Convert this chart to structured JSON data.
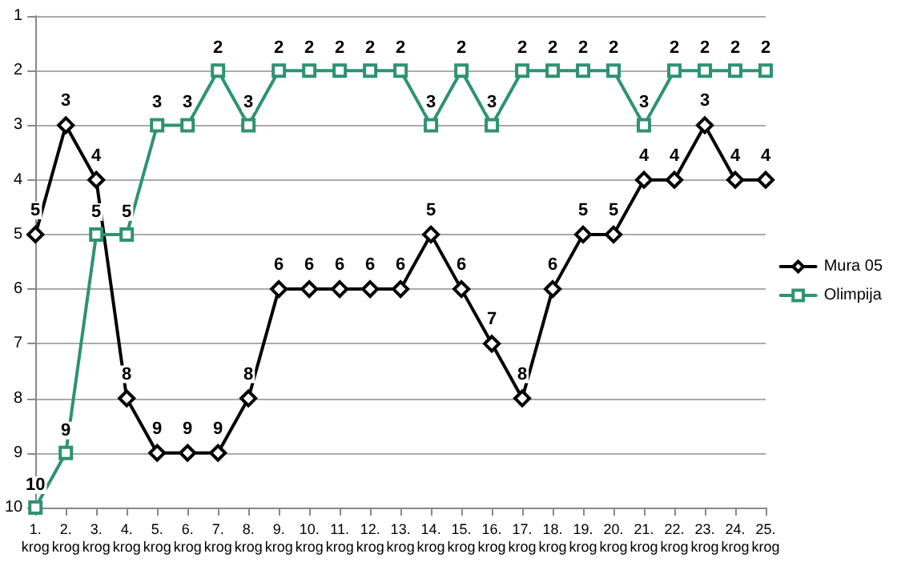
{
  "chart_data": {
    "type": "line",
    "categories": [
      "1. krog",
      "2. krog",
      "3. krog",
      "4. krog",
      "5. krog",
      "6. krog",
      "7. krog",
      "8. krog",
      "9. krog",
      "10. krog",
      "11. krog",
      "12. krog",
      "13. krog",
      "14. krog",
      "15. krog",
      "16. krog",
      "17. krog",
      "18. krog",
      "19. krog",
      "20. krog",
      "21. krog",
      "22. krog",
      "23. krog",
      "24. krog",
      "25. krog"
    ],
    "series": [
      {
        "name": "Mura 05",
        "color": "#000000",
        "marker": "diamond",
        "values": [
          5,
          3,
          4,
          8,
          9,
          9,
          9,
          8,
          6,
          6,
          6,
          6,
          6,
          5,
          6,
          7,
          8,
          6,
          5,
          5,
          4,
          4,
          3,
          4,
          4
        ]
      },
      {
        "name": "Olimpija",
        "color": "#2e9272",
        "marker": "square",
        "values": [
          10,
          9,
          5,
          5,
          3,
          3,
          2,
          3,
          2,
          2,
          2,
          2,
          2,
          3,
          2,
          3,
          2,
          2,
          2,
          2,
          3,
          2,
          2,
          2,
          2
        ]
      }
    ],
    "ylim": [
      10,
      1
    ],
    "yticks": [
      1,
      2,
      3,
      4,
      5,
      6,
      7,
      8,
      9,
      10
    ],
    "grid": "y",
    "legend": "right",
    "data_labels": true,
    "line_style": "solid"
  }
}
